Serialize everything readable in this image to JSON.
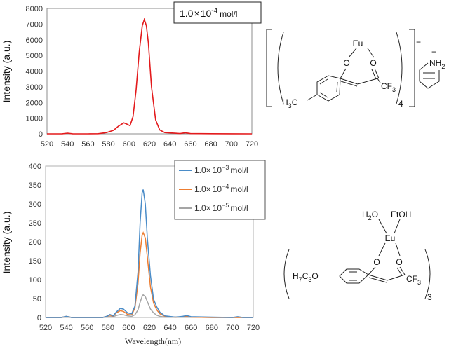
{
  "chart_data": [
    {
      "type": "line",
      "ylabel": "Intensity (a.u.)",
      "xlabel": "",
      "xlim": [
        520,
        720
      ],
      "ylim": [
        0,
        8000
      ],
      "x_ticks": [
        "520",
        "540",
        "560",
        "580",
        "600",
        "620",
        "640",
        "660",
        "680",
        "700",
        "720"
      ],
      "y_ticks": [
        "0",
        "1000",
        "2000",
        "3000",
        "4000",
        "5000",
        "6000",
        "7000",
        "8000"
      ],
      "grid": false,
      "annotation": {
        "base": "1.0",
        "times": "×",
        "ten": "10",
        "exp": "-4",
        "unit": "mol/l"
      },
      "series": [
        {
          "color": "#e31a1c",
          "points": [
            [
              520,
              0
            ],
            [
              535,
              5
            ],
            [
              540,
              45
            ],
            [
              545,
              5
            ],
            [
              560,
              0
            ],
            [
              570,
              10
            ],
            [
              578,
              80
            ],
            [
              585,
              230
            ],
            [
              590,
              500
            ],
            [
              595,
              700
            ],
            [
              598,
              620
            ],
            [
              601,
              520
            ],
            [
              604,
              1100
            ],
            [
              607,
              2800
            ],
            [
              610,
              5200
            ],
            [
              613,
              6900
            ],
            [
              615,
              7300
            ],
            [
              617,
              6900
            ],
            [
              619,
              5800
            ],
            [
              622,
              3000
            ],
            [
              626,
              900
            ],
            [
              630,
              250
            ],
            [
              635,
              80
            ],
            [
              645,
              40
            ],
            [
              650,
              20
            ],
            [
              655,
              70
            ],
            [
              660,
              20
            ],
            [
              680,
              10
            ],
            [
              700,
              5
            ],
            [
              720,
              0
            ]
          ]
        }
      ]
    },
    {
      "type": "line",
      "ylabel": "Intensity (a.u.)",
      "xlabel": "Wavelength(nm)",
      "xlim": [
        520,
        720
      ],
      "ylim": [
        0,
        400
      ],
      "x_ticks": [
        "520",
        "540",
        "560",
        "580",
        "600",
        "620",
        "640",
        "660",
        "680",
        "700",
        "720"
      ],
      "y_ticks": [
        "0",
        "50",
        "100",
        "150",
        "200",
        "250",
        "300",
        "350",
        "400"
      ],
      "grid": false,
      "legend": "top-right",
      "series": [
        {
          "name": "1.0× 10⁻³ mol/l",
          "label_base": "1.0×",
          "label_ten": "10",
          "label_exp": "−3",
          "label_unit": "mol/l",
          "color": "#4a8cc8",
          "points": [
            [
              520,
              0
            ],
            [
              535,
              0
            ],
            [
              540,
              3
            ],
            [
              545,
              0
            ],
            [
              575,
              0
            ],
            [
              579,
              3
            ],
            [
              582,
              8
            ],
            [
              585,
              4
            ],
            [
              588,
              14
            ],
            [
              592,
              24
            ],
            [
              595,
              22
            ],
            [
              599,
              12
            ],
            [
              603,
              10
            ],
            [
              606,
              30
            ],
            [
              609,
              120
            ],
            [
              611,
              250
            ],
            [
              613,
              330
            ],
            [
              614,
              338
            ],
            [
              616,
              300
            ],
            [
              618,
              210
            ],
            [
              621,
              110
            ],
            [
              624,
              48
            ],
            [
              627,
              28
            ],
            [
              630,
              14
            ],
            [
              635,
              4
            ],
            [
              645,
              1
            ],
            [
              652,
              3
            ],
            [
              656,
              5
            ],
            [
              660,
              2
            ],
            [
              680,
              1
            ],
            [
              700,
              0
            ],
            [
              705,
              2
            ],
            [
              710,
              0
            ],
            [
              720,
              0
            ]
          ]
        },
        {
          "name": "1.0× 10⁻⁴ mol/l",
          "label_base": "1.0×",
          "label_ten": "10",
          "label_exp": "−4",
          "label_unit": "mol/l",
          "color": "#ed7d31",
          "points": [
            [
              520,
              0
            ],
            [
              535,
              0
            ],
            [
              540,
              3
            ],
            [
              545,
              0
            ],
            [
              575,
              0
            ],
            [
              579,
              3
            ],
            [
              582,
              6
            ],
            [
              585,
              3
            ],
            [
              588,
              12
            ],
            [
              592,
              18
            ],
            [
              595,
              16
            ],
            [
              599,
              8
            ],
            [
              603,
              7
            ],
            [
              606,
              25
            ],
            [
              609,
              90
            ],
            [
              611,
              170
            ],
            [
              613,
              218
            ],
            [
              614,
              224
            ],
            [
              616,
              210
            ],
            [
              618,
              160
            ],
            [
              621,
              80
            ],
            [
              624,
              38
            ],
            [
              627,
              20
            ],
            [
              630,
              10
            ],
            [
              635,
              3
            ],
            [
              645,
              1
            ],
            [
              652,
              2
            ],
            [
              656,
              3
            ],
            [
              660,
              1
            ],
            [
              680,
              0
            ],
            [
              720,
              0
            ]
          ]
        },
        {
          "name": "1.0× 10⁻⁵ mol/l",
          "label_base": "1.0×",
          "label_ten": "10",
          "label_exp": "−5",
          "label_unit": "mol/l",
          "color": "#a5a5a5",
          "points": [
            [
              520,
              0
            ],
            [
              535,
              0
            ],
            [
              540,
              2
            ],
            [
              545,
              0
            ],
            [
              575,
              0
            ],
            [
              580,
              2
            ],
            [
              585,
              2
            ],
            [
              588,
              5
            ],
            [
              592,
              8
            ],
            [
              595,
              7
            ],
            [
              599,
              4
            ],
            [
              603,
              3
            ],
            [
              606,
              7
            ],
            [
              609,
              20
            ],
            [
              611,
              40
            ],
            [
              613,
              56
            ],
            [
              614,
              60
            ],
            [
              616,
              55
            ],
            [
              618,
              42
            ],
            [
              621,
              22
            ],
            [
              624,
              12
            ],
            [
              627,
              6
            ],
            [
              630,
              3
            ],
            [
              635,
              1
            ],
            [
              660,
              1
            ],
            [
              680,
              0
            ],
            [
              720,
              0
            ]
          ]
        }
      ]
    }
  ],
  "structure_top": {
    "metal": "Eu",
    "o1": "O",
    "o2": "O",
    "methyl": "H",
    "methyl_sub": "3",
    "methyl_c": "C",
    "cf": "CF",
    "cf_sub": "3",
    "count": "4",
    "charge": "−",
    "ammonium_n": "NH",
    "ammonium_sub": "2",
    "ammonium_plus": "+"
  },
  "structure_bottom": {
    "metal": "Eu",
    "water": "H",
    "water_sub": "2",
    "water_o": "O",
    "ethanol": "EtOH",
    "o1": "O",
    "o2": "O",
    "alkoxy_h": "H",
    "alkoxy_h_sub": "7",
    "alkoxy_c": "C",
    "alkoxy_c_sub": "3",
    "alkoxy_o": "O",
    "cf": "CF",
    "cf_sub": "3",
    "count": "3"
  }
}
